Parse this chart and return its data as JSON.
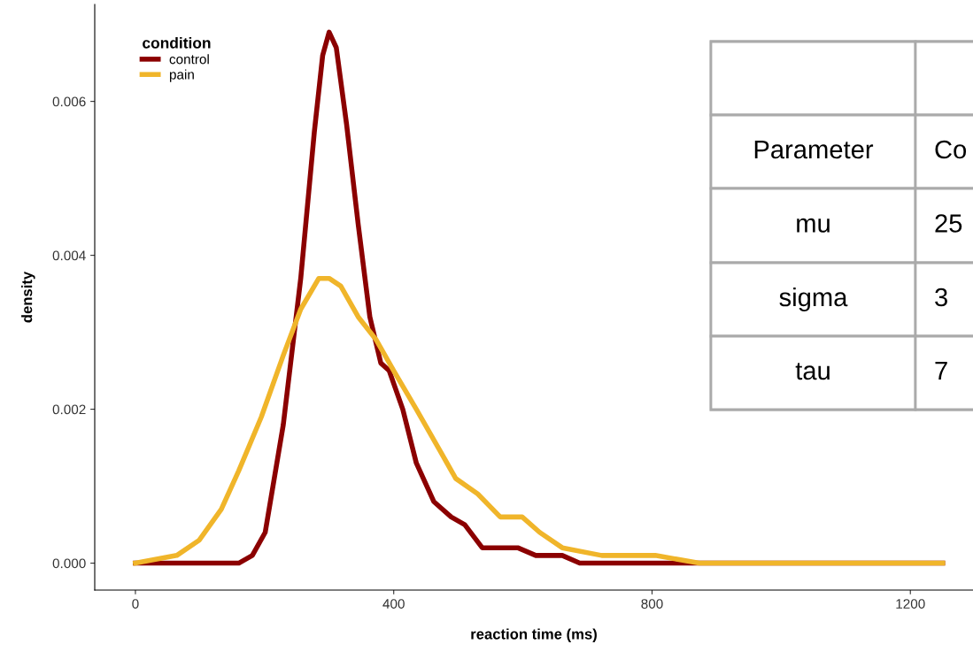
{
  "chart_data": {
    "type": "line",
    "xlabel": "reaction time (ms)",
    "ylabel": "density",
    "legend_title": "condition",
    "legend": "top left",
    "grid": false,
    "xlim": [
      -63,
      1297
    ],
    "ylim": [
      -0.00035,
      0.00726
    ],
    "xticks": [
      0,
      400,
      800,
      1200
    ],
    "yticks": [
      {
        "value": 0,
        "label": "0.000"
      },
      {
        "value": 0.002,
        "label": "0.002"
      },
      {
        "value": 0.004,
        "label": "0.004"
      },
      {
        "value": 0.006,
        "label": "0.006"
      }
    ],
    "series": [
      {
        "name": "control",
        "color": "#8b0000",
        "x": [
          0,
          119,
          160,
          181,
          201,
          229,
          256,
          277,
          290,
          300,
          311,
          327,
          345,
          363,
          380,
          393,
          414,
          435,
          462,
          489,
          510,
          537,
          565,
          592,
          620,
          661,
          688,
          736,
          777,
          832,
          1250
        ],
        "values": [
          0,
          0,
          0,
          0.0001,
          0.0004,
          0.0018,
          0.0037,
          0.0056,
          0.0066,
          0.0069,
          0.0067,
          0.0057,
          0.0044,
          0.0032,
          0.0026,
          0.0025,
          0.002,
          0.0013,
          0.0008,
          0.0006,
          0.0005,
          0.0002,
          0.0002,
          0.0002,
          0.0001,
          0.0001,
          0,
          0,
          0,
          0,
          0
        ]
      },
      {
        "name": "pain",
        "color": "#f0b52a",
        "x": [
          0,
          64,
          99,
          133,
          160,
          195,
          229,
          256,
          284,
          300,
          318,
          345,
          373,
          400,
          435,
          469,
          496,
          530,
          565,
          599,
          626,
          661,
          722,
          805,
          873,
          928,
          983,
          1052,
          1250
        ],
        "values": [
          0,
          0.0001,
          0.0003,
          0.0007,
          0.0012,
          0.0019,
          0.0027,
          0.0033,
          0.0037,
          0.0037,
          0.0036,
          0.0032,
          0.0029,
          0.0025,
          0.002,
          0.0015,
          0.0011,
          0.0009,
          0.0006,
          0.0006,
          0.0004,
          0.0002,
          0.0001,
          0.0001,
          0,
          0,
          0,
          0,
          0
        ]
      }
    ],
    "annotations": [
      "Parameter",
      "Co",
      "mu",
      "25",
      "sigma",
      "3",
      "tau",
      "7"
    ]
  }
}
